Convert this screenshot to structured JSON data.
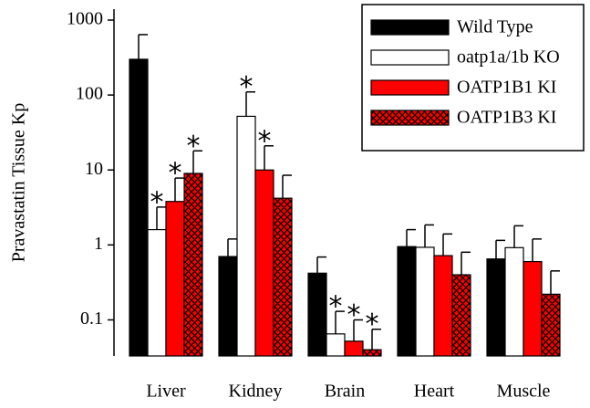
{
  "chart_data": {
    "type": "bar",
    "y_label": "Pravastatin Tissue Kp",
    "categories": [
      "Liver",
      "Kidney",
      "Brain",
      "Heart",
      "Muscle"
    ],
    "series": [
      {
        "name": "Wild Type",
        "color": "#000000",
        "values": [
          300,
          0.7,
          0.42,
          0.95,
          0.65
        ],
        "errors": [
          340,
          0.5,
          0.27,
          0.65,
          0.5
        ],
        "markers": [
          null,
          null,
          null,
          null,
          null
        ]
      },
      {
        "name": "oatp1a/1b KO",
        "color": "#ffffff",
        "values": [
          1.6,
          52,
          0.065,
          0.93,
          0.92
        ],
        "errors": [
          1.6,
          58,
          0.065,
          0.92,
          0.88
        ],
        "markers": [
          "*",
          "*",
          "*",
          null,
          null
        ]
      },
      {
        "name": "OATP1B1 KI",
        "color": "#ff0000",
        "values": [
          3.8,
          10,
          0.052,
          0.72,
          0.6
        ],
        "errors": [
          4,
          11,
          0.048,
          0.68,
          0.6
        ],
        "markers": [
          "*",
          "*",
          "*",
          null,
          null
        ]
      },
      {
        "name": "OATP1B3 KI",
        "color": "#ff0000",
        "pattern": "crosshatch",
        "values": [
          9,
          4.2,
          0.04,
          0.4,
          0.22
        ],
        "errors": [
          9,
          4.3,
          0.035,
          0.4,
          0.23
        ],
        "markers": [
          "*",
          null,
          "*",
          null,
          null
        ]
      }
    ],
    "log_scale": true,
    "ylim": [
      0.033,
      1400
    ],
    "yticks": [
      0.1,
      1,
      10,
      100,
      1000
    ],
    "legend": "top-right"
  }
}
